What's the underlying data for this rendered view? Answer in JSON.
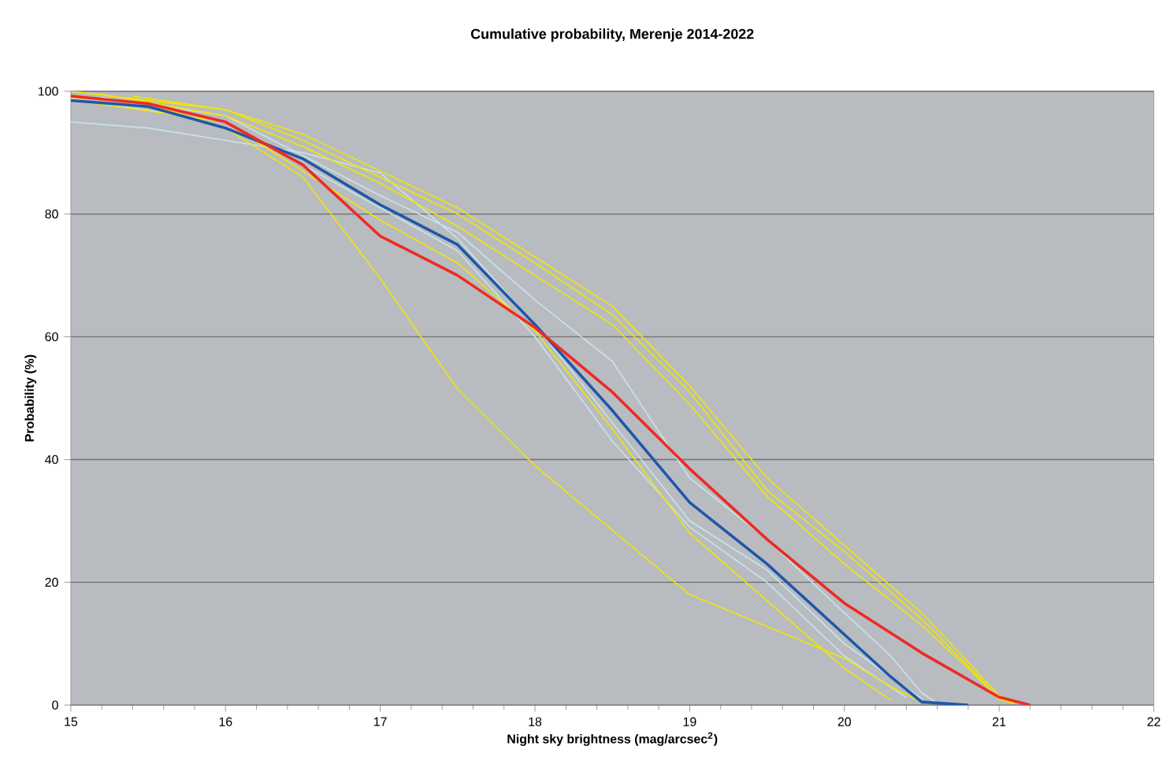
{
  "chart_data": {
    "type": "line",
    "title": "Cumulative probability, Merenje 2014-2022",
    "xlabel": "Night sky brightness (mag/arcsec$^{2}$)",
    "ylabel": "Probability (%)",
    "xlim": [
      15,
      22
    ],
    "xticks": [
      15,
      16,
      17,
      18,
      19,
      20,
      21,
      22
    ],
    "ylim": [
      0,
      100
    ],
    "yticks": [
      0,
      20,
      40,
      60,
      80,
      100
    ],
    "grid": "y",
    "marker": "none",
    "line_style": "solid",
    "series": [
      {
        "color": "#c8e4ea",
        "x": [
          15,
          15.5,
          16,
          16.5,
          17,
          17.5,
          18,
          18.5,
          19,
          19.5,
          20,
          20.5
        ],
        "values": [
          95,
          94,
          92,
          90,
          86.7,
          76,
          62,
          46,
          30,
          22,
          10,
          1
        ]
      },
      {
        "color": "#c8e4ea",
        "x": [
          15.2,
          16,
          17,
          17.5,
          18,
          18.5,
          19,
          19.5,
          20,
          20.3,
          20.5,
          20.6
        ],
        "values": [
          99,
          96,
          83,
          77,
          66,
          56,
          37,
          27,
          15,
          8,
          2,
          0.3
        ]
      },
      {
        "color": "#c8e4ea",
        "x": [
          15,
          16,
          17,
          17.5,
          18,
          18.5,
          19,
          19.5,
          20,
          20.4
        ],
        "values": [
          98.8,
          95,
          81,
          74,
          60,
          43,
          29,
          20,
          8,
          1.2
        ]
      },
      {
        "color": "#f2e600",
        "x": [
          15,
          16,
          16.5,
          17,
          17.5,
          18,
          18.5,
          19,
          19.5,
          20,
          20.5,
          20.8,
          21,
          21.1
        ],
        "values": [
          100,
          97,
          92,
          86,
          80,
          72,
          63.6,
          51,
          35,
          25,
          14,
          6.4,
          1,
          0.2
        ]
      },
      {
        "color": "#f2e600",
        "x": [
          15.2,
          16,
          16.5,
          17,
          17.5,
          18,
          18.5,
          19,
          19.5,
          20,
          20.5,
          20.8,
          21,
          21.1
        ],
        "values": [
          99.5,
          96,
          91,
          85,
          78,
          70,
          62,
          49,
          34,
          23,
          13,
          6,
          1,
          0.4
        ]
      },
      {
        "color": "#f2e600",
        "x": [
          15.4,
          16,
          16.5,
          17,
          17.5,
          18,
          18.5,
          19,
          19.5,
          20,
          20.5,
          20.8,
          21,
          21.1
        ],
        "values": [
          99.2,
          97,
          93,
          87,
          81,
          73,
          65,
          52,
          37,
          26,
          15,
          7,
          1.5,
          0.6
        ]
      },
      {
        "color": "#f2e600",
        "x": [
          15,
          16,
          17,
          17.5,
          18,
          18.5,
          19,
          19.5,
          20,
          20.3
        ],
        "values": [
          98.6,
          95,
          79,
          72,
          61,
          45,
          28,
          17,
          6,
          0.8
        ]
      },
      {
        "color": "#f2e600",
        "x": [
          15,
          15.5,
          16,
          16.5,
          17,
          17.5,
          18,
          18.5,
          19,
          19.5,
          20,
          20.3,
          20.5
        ],
        "values": [
          99,
          98,
          94,
          86,
          69.5,
          51.5,
          39,
          28.5,
          18,
          12.8,
          7.6,
          3,
          0.5
        ]
      },
      {
        "color": "#1f57a8",
        "x": [
          15,
          15.5,
          16,
          16.5,
          17,
          17.5,
          18,
          18.5,
          19,
          19.5,
          20,
          20.3,
          20.5,
          20.8
        ],
        "values": [
          98.5,
          97.5,
          94,
          89,
          81.5,
          75,
          62,
          48,
          33,
          23,
          11.5,
          4.6,
          0.5,
          0
        ]
      },
      {
        "color": "#ee2a24",
        "x": [
          15,
          15.5,
          16,
          16.5,
          17,
          17.5,
          18,
          18.5,
          19,
          19.5,
          20,
          20.5,
          21,
          21.2
        ],
        "values": [
          99.2,
          98,
          95,
          88,
          76.4,
          70,
          61.5,
          51,
          38.5,
          27,
          16.6,
          8.5,
          1.3,
          0
        ]
      }
    ]
  }
}
